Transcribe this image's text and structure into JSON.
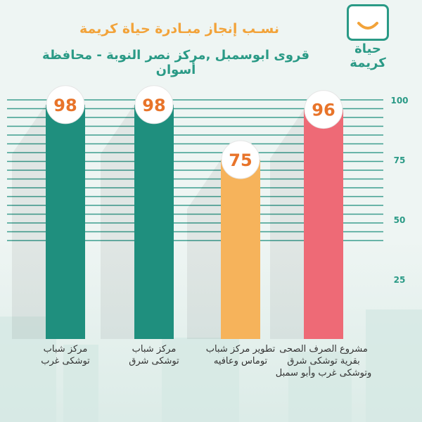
{
  "header": {
    "title": "نسـب إنجاز مبـادرة حياة كريمة",
    "subtitle": "قروى ابوسمبل ,مركز نصر النوبة - محافظة أسوان"
  },
  "logo": {
    "line1": "حياة",
    "line2": "كريمة"
  },
  "colors": {
    "green": "#1f8f7e",
    "orange": "#f6b35b",
    "coral": "#ee6a76",
    "accent_orange": "#f2a33a",
    "teal": "#2a9a86",
    "value_text": "#e8742a"
  },
  "chart_data": {
    "type": "bar",
    "title": "نسـب إنجاز مبـادرة حياة كريمة",
    "subtitle": "قروى ابوسمبل ,مركز نصر النوبة - محافظة أسوان",
    "categories": [
      "مركز شباب\nتوشكى غرب",
      "مركز شباب\nتوشكى شرق",
      "تطوير مركز شباب\nتوماس وعافيه",
      "مشروع الصرف الصحى\nبقرية توشكى شرق\nوتوشكى غرب وأبو سمبل"
    ],
    "values": [
      98,
      98,
      75,
      96
    ],
    "value_labels": [
      "98",
      "98",
      "75",
      "96"
    ],
    "bar_colors": [
      "#1f8f7e",
      "#1f8f7e",
      "#f6b35b",
      "#ee6a76"
    ],
    "yticks": [
      25,
      50,
      75,
      100
    ],
    "ylim": [
      0,
      100
    ],
    "grid": true,
    "legend": "none"
  }
}
